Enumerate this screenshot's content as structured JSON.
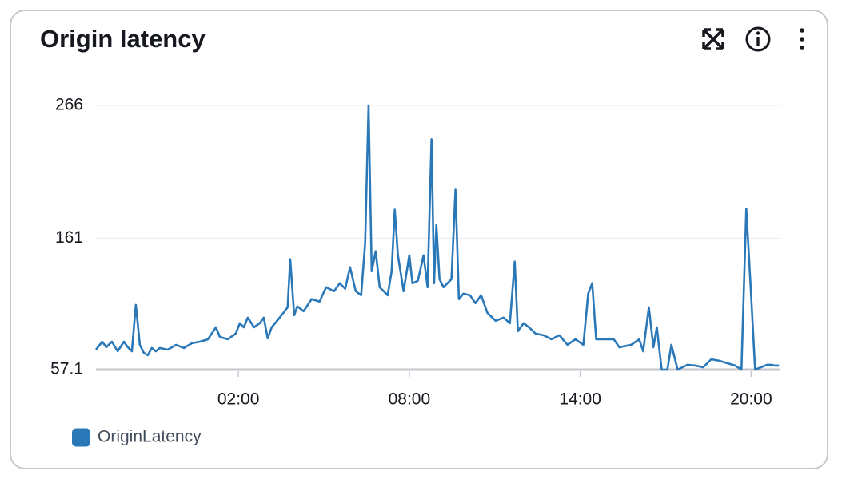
{
  "chart_data": {
    "type": "line",
    "title": "Origin latency",
    "xlim": [
      -3,
      21
    ],
    "xticks": [
      {
        "value": 2,
        "label": "02:00"
      },
      {
        "value": 8,
        "label": "08:00"
      },
      {
        "value": 14,
        "label": "14:00"
      },
      {
        "value": 20,
        "label": "20:00"
      }
    ],
    "ylim": [
      57.1,
      266
    ],
    "yticks": [
      57.1,
      161,
      266
    ],
    "grid": true,
    "legend": "bottom-left",
    "x": [
      -3,
      -2.78,
      -2.64,
      -2.44,
      -2.24,
      -2.02,
      -1.88,
      -1.74,
      -1.6,
      -1.46,
      -1.32,
      -1.18,
      -1.04,
      -0.9,
      -0.76,
      -0.48,
      -0.19,
      0.09,
      0.37,
      0.65,
      0.93,
      1.21,
      1.35,
      1.63,
      1.91,
      2.05,
      2.19,
      2.33,
      2.55,
      2.75,
      2.89,
      3.03,
      3.17,
      3.45,
      3.73,
      3.82,
      3.96,
      4.07,
      4.29,
      4.57,
      4.85,
      5.08,
      5.36,
      5.56,
      5.75,
      5.92,
      6.12,
      6.31,
      6.45,
      6.57,
      6.68,
      6.82,
      6.96,
      7.1,
      7.24,
      7.38,
      7.49,
      7.6,
      7.8,
      8.0,
      8.11,
      8.3,
      8.5,
      8.64,
      8.78,
      8.87,
      8.95,
      9.06,
      9.2,
      9.48,
      9.62,
      9.74,
      9.9,
      10.13,
      10.32,
      10.52,
      10.74,
      11.03,
      11.31,
      11.53,
      11.7,
      11.81,
      12.01,
      12.2,
      12.43,
      12.71,
      12.99,
      13.27,
      13.55,
      13.83,
      14.11,
      14.28,
      14.42,
      14.56,
      14.95,
      15.18,
      15.37,
      15.79,
      16.07,
      16.21,
      16.41,
      16.57,
      16.69,
      16.86,
      17.06,
      17.2,
      17.42,
      17.76,
      18.04,
      18.32,
      18.6,
      18.88,
      19.16,
      19.44,
      19.66,
      19.83,
      20.0,
      20.14,
      20.56,
      20.7,
      20.84,
      20.98
    ],
    "series": [
      {
        "name": "OriginLatency",
        "color": "#2a78b8",
        "values": [
          72.9,
          79.2,
          74.8,
          79.2,
          71.6,
          79.2,
          74.8,
          71.6,
          108.3,
          76.7,
          70.4,
          68.5,
          74.2,
          71.6,
          74.2,
          72.9,
          76.7,
          74.2,
          78,
          79.2,
          81.1,
          90.6,
          83,
          81.1,
          85.6,
          93.8,
          90.6,
          98.2,
          90.6,
          93.8,
          98.2,
          81.8,
          90.6,
          98.2,
          106.4,
          144.4,
          100.1,
          107.1,
          103.3,
          112.8,
          110.9,
          122.2,
          119.1,
          125.4,
          121,
          138.1,
          119.1,
          115.9,
          157,
          266,
          134.9,
          150.7,
          122.2,
          119.1,
          115.9,
          134.9,
          183.6,
          147.5,
          119.1,
          147.5,
          125.4,
          127.3,
          147.5,
          122.2,
          239.3,
          125.4,
          171.6,
          128.6,
          122.2,
          128.6,
          199.4,
          112.8,
          117.2,
          115.9,
          109.6,
          115.9,
          102,
          95.7,
          98.2,
          93.8,
          142.5,
          87.5,
          93.8,
          90.6,
          85.6,
          84.3,
          81.1,
          84.3,
          76.7,
          81.1,
          76.7,
          117.2,
          125.4,
          81.1,
          81.1,
          81.1,
          74.8,
          76.7,
          81.1,
          71.6,
          106.4,
          74.8,
          90.6,
          57.1,
          57.1,
          76.7,
          57.1,
          60.9,
          60.3,
          59,
          65.3,
          64.1,
          62.2,
          60.3,
          57.1,
          184.2,
          115.9,
          57.1,
          60.9,
          60.9,
          60.3,
          60.3
        ]
      }
    ]
  }
}
